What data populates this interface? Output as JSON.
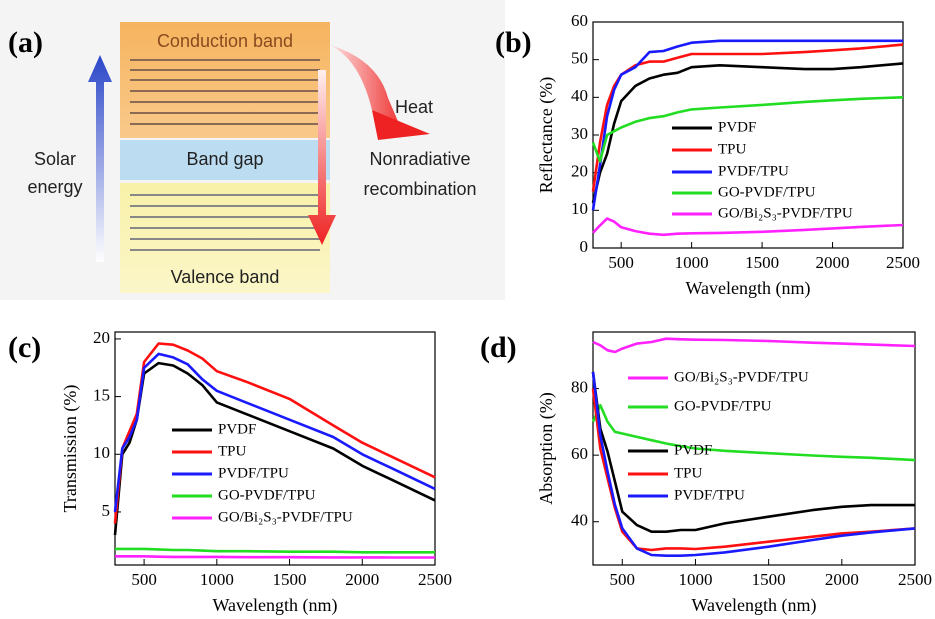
{
  "diagram": {
    "panel_label": "(a)",
    "conduction_band": "Conduction band",
    "band_gap": "Band gap",
    "valence_band": "Valence band",
    "solar_energy": [
      "Solar",
      "energy"
    ],
    "heat": "Heat",
    "nonradiative_recombination": [
      "Nonradiative",
      "recombination"
    ]
  },
  "chart_data": [
    {
      "type": "line",
      "panel_label": "(b)",
      "xlabel": "Wavelength (nm)",
      "ylabel": "Reflectance (%)",
      "x": [
        300,
        350,
        400,
        450,
        500,
        600,
        700,
        800,
        900,
        1000,
        1200,
        1500,
        1800,
        2000,
        2200,
        2500
      ],
      "xlim": [
        300,
        2500
      ],
      "xticks": [
        500,
        1000,
        1500,
        2000,
        2500
      ],
      "ylim": [
        0,
        60
      ],
      "yticks": [
        0,
        10,
        20,
        30,
        40,
        50,
        60
      ],
      "series": [
        {
          "name": "PVDF",
          "color": "#000000",
          "values": [
            12,
            20,
            25,
            33,
            39,
            43,
            45,
            46,
            46.5,
            48,
            48.5,
            48,
            47.5,
            47.5,
            48,
            49
          ]
        },
        {
          "name": "TPU",
          "color": "#ff1010",
          "values": [
            15,
            28,
            38,
            43,
            46,
            48.5,
            49.5,
            49.5,
            50.5,
            51.5,
            51.5,
            51.5,
            52,
            52.5,
            53,
            54
          ]
        },
        {
          "name": "PVDF/TPU",
          "color": "#1a1aff",
          "values": [
            10,
            22,
            35,
            42,
            46,
            48,
            52,
            52.3,
            53.5,
            54.5,
            55,
            55,
            55,
            55,
            55,
            55
          ]
        },
        {
          "name": "GO-PVDF/TPU",
          "color": "#22dd22",
          "values": [
            28,
            23,
            30,
            31,
            32,
            33.5,
            34.5,
            35,
            36,
            36.8,
            37.3,
            38,
            38.8,
            39.2,
            39.6,
            40
          ]
        },
        {
          "name": "GO/Bi₂S₃-PVDF/TPU",
          "color": "#ff22ff",
          "values": [
            4,
            6,
            7.8,
            7,
            5.5,
            4.5,
            3.8,
            3.5,
            3.8,
            3.9,
            4,
            4.3,
            4.8,
            5.2,
            5.6,
            6.1
          ]
        }
      ]
    },
    {
      "type": "line",
      "panel_label": "(c)",
      "xlabel": "Wavelength (nm)",
      "ylabel": "Transmission (%)",
      "x": [
        300,
        350,
        400,
        450,
        500,
        600,
        700,
        800,
        900,
        1000,
        1200,
        1500,
        1800,
        2000,
        2200,
        2500
      ],
      "xlim": [
        300,
        2500
      ],
      "xticks": [
        500,
        1000,
        1500,
        2000,
        2500
      ],
      "ylim": [
        0.4,
        20.6
      ],
      "yticks": [
        5,
        10,
        15,
        20
      ],
      "series": [
        {
          "name": "PVDF",
          "color": "#000000",
          "values": [
            3,
            10,
            11,
            13,
            17,
            17.9,
            17.7,
            17,
            16,
            14.5,
            13.5,
            12,
            10.5,
            9,
            7.8,
            6
          ]
        },
        {
          "name": "TPU",
          "color": "#ff1010",
          "values": [
            4,
            10.5,
            12,
            13.5,
            18,
            19.6,
            19.5,
            19,
            18.3,
            17.2,
            16.3,
            14.8,
            12.5,
            11,
            9.8,
            8
          ]
        },
        {
          "name": "PVDF/TPU",
          "color": "#1a1aff",
          "values": [
            5,
            10.5,
            11.5,
            13,
            17.5,
            18.7,
            18.4,
            17.8,
            16.5,
            15.5,
            14.5,
            13,
            11.5,
            10,
            8.8,
            7
          ]
        },
        {
          "name": "GO-PVDF/TPU",
          "color": "#22dd22",
          "values": [
            1.8,
            1.8,
            1.8,
            1.8,
            1.8,
            1.75,
            1.7,
            1.7,
            1.65,
            1.6,
            1.6,
            1.55,
            1.55,
            1.5,
            1.5,
            1.5
          ]
        },
        {
          "name": "GO/Bi₂S₃-PVDF/TPU",
          "color": "#ff22ff",
          "values": [
            1.15,
            1.15,
            1.15,
            1.15,
            1.15,
            1.12,
            1.1,
            1.1,
            1.1,
            1.1,
            1.08,
            1.08,
            1.06,
            1.06,
            1.05,
            1.05
          ]
        }
      ]
    },
    {
      "type": "line",
      "panel_label": "(d)",
      "xlabel": "Wavelength (nm)",
      "ylabel": "Absorption (%)",
      "x": [
        300,
        350,
        400,
        450,
        500,
        600,
        700,
        800,
        900,
        1000,
        1200,
        1500,
        1800,
        2000,
        2200,
        2500
      ],
      "xlim": [
        300,
        2500
      ],
      "xticks": [
        500,
        1000,
        1500,
        2000,
        2500
      ],
      "ylim": [
        27,
        97
      ],
      "yticks": [
        40,
        60,
        80
      ],
      "series": [
        {
          "name": "GO/Bi₂S₃-PVDF/TPU",
          "color": "#ff22ff",
          "values": [
            94,
            93,
            91.5,
            91,
            92,
            93.5,
            94,
            95,
            94.8,
            94.7,
            94.6,
            94.3,
            93.8,
            93.5,
            93.2,
            92.8
          ]
        },
        {
          "name": "GO-PVDF/TPU",
          "color": "#22dd22",
          "values": [
            70,
            75,
            70,
            67,
            66.5,
            65.5,
            64.5,
            63.5,
            62.7,
            62,
            61.3,
            60.6,
            59.9,
            59.5,
            59.2,
            58.5
          ]
        },
        {
          "name": "PVDF",
          "color": "#000000",
          "values": [
            85,
            68,
            61,
            52,
            43,
            39,
            37,
            37,
            37.5,
            37.5,
            39.5,
            41.5,
            43.5,
            44.5,
            45,
            45
          ]
        },
        {
          "name": "TPU",
          "color": "#ff1010",
          "values": [
            80,
            62,
            53,
            44,
            37,
            32,
            31.5,
            32,
            32,
            31.8,
            32.5,
            34,
            35.5,
            36.5,
            37,
            38
          ]
        },
        {
          "name": "PVDF/TPU",
          "color": "#1a1aff",
          "values": [
            85,
            66,
            55,
            45,
            38,
            32,
            30,
            29.8,
            29.8,
            30,
            30.8,
            32.5,
            34.5,
            35.8,
            36.8,
            38
          ]
        }
      ]
    }
  ]
}
